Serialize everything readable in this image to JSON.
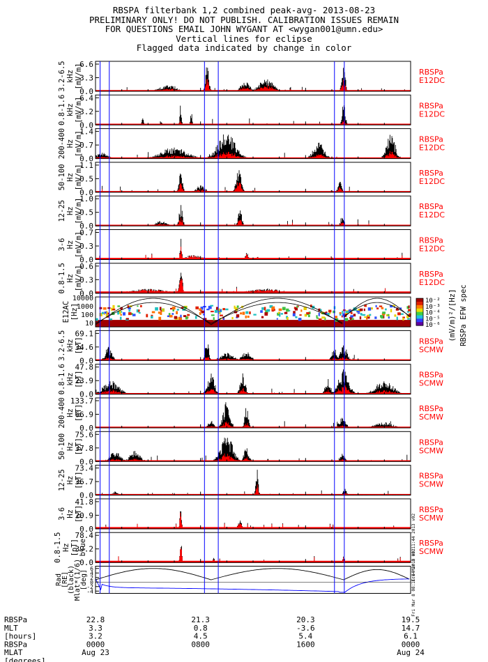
{
  "header": {
    "line1": "RBSPA filterbank 1,2 combined peak-avg- 2013-08-23",
    "line2": "PRELIMINARY ONLY! DO NOT PUBLISH. CALIBRATION ISSUES REMAIN",
    "line3": "FOR QUESTIONS EMAIL JOHN WYGANT AT <wygan001@umn.edu>",
    "line4": "Vertical lines for eclipse",
    "line5": "Flagged data indicated by change in color"
  },
  "colors": {
    "black": "#000000",
    "red": "#ff0000",
    "blue": "#0000ff"
  },
  "chart_data": {
    "type": "line",
    "x_range_hours": [
      0,
      24
    ],
    "eclipse_lines_hours": [
      0.35,
      1.05,
      8.3,
      9.35,
      18.2,
      18.95
    ],
    "panels": [
      {
        "name": "e12dc-3.2-6.5",
        "ylabel": [
          "3.2-6.5",
          "kHz",
          "[mV/m]"
        ],
        "ylim": [
          0,
          6.6
        ],
        "ticks": [
          "0.0",
          "3.3",
          "6.6"
        ],
        "tag": [
          "RBSPa",
          "E12DC"
        ],
        "bursts": [
          [
            8.5,
            6.6,
            0.2
          ],
          [
            11.4,
            2.5,
            0.5
          ],
          [
            13.0,
            3.2,
            0.8
          ],
          [
            18.9,
            6.6,
            0.2
          ],
          [
            5.5,
            1.5,
            1.0
          ]
        ],
        "red_scale": 0.55
      },
      {
        "name": "e12dc-0.8-1.6",
        "ylabel": [
          "0.8-1.6",
          "kHz",
          "[mV/m]"
        ],
        "ylim": [
          0,
          6.4
        ],
        "ticks": [
          "0.0",
          "3.2",
          "6.4"
        ],
        "tag": [
          "RBSPa",
          "E12DC"
        ],
        "bursts": [
          [
            6.5,
            5.5,
            0.1
          ],
          [
            7.3,
            3.5,
            0.1
          ],
          [
            18.9,
            5.0,
            0.2
          ],
          [
            3.6,
            1.8,
            0.1
          ],
          [
            5.0,
            1.5,
            0.1
          ]
        ],
        "red_scale": 0.3
      },
      {
        "name": "e12dc-200-400",
        "ylabel": [
          "200-400",
          "Hz",
          "[mV/m]"
        ],
        "ylim": [
          0,
          1.4
        ],
        "ticks": [
          "0.0",
          "0.7",
          "1.4"
        ],
        "tag": [
          "RBSPa",
          "E12DC"
        ],
        "bursts": [
          [
            10.0,
            1.4,
            1.0
          ],
          [
            17.0,
            0.9,
            0.6
          ],
          [
            22.5,
            1.3,
            0.5
          ],
          [
            0.5,
            0.3,
            0.8
          ],
          [
            6.0,
            0.6,
            1.5
          ]
        ],
        "red_scale": 0.35
      },
      {
        "name": "e12dc-50-100",
        "ylabel": [
          "50-100",
          "Hz",
          "[mV/m]"
        ],
        "ylim": [
          0,
          1.1
        ],
        "ticks": [
          "0.0",
          "0.5",
          "1.1"
        ],
        "tag": [
          "RBSPa",
          "E12DC"
        ],
        "bursts": [
          [
            6.5,
            0.9,
            0.2
          ],
          [
            10.9,
            1.0,
            0.3
          ],
          [
            8.0,
            0.3,
            0.5
          ],
          [
            18.6,
            0.6,
            0.2
          ]
        ],
        "red_scale": 0.55
      },
      {
        "name": "e12dc-12-25",
        "ylabel": [
          "12-25",
          "Hz",
          "[mV/m]"
        ],
        "ylim": [
          0,
          1.0
        ],
        "ticks": [
          "0.0",
          "0.5",
          "1.0"
        ],
        "tag": [
          "RBSPa",
          "E12DC"
        ],
        "bursts": [
          [
            6.5,
            0.8,
            0.2
          ],
          [
            11.0,
            0.9,
            0.2
          ],
          [
            18.8,
            0.4,
            0.2
          ],
          [
            5.0,
            0.2,
            0.6
          ]
        ],
        "red_scale": 0.55
      },
      {
        "name": "e12dc-3-6",
        "ylabel": [
          "3-6",
          "Hz",
          "[mV/m]"
        ],
        "ylim": [
          0,
          0.7
        ],
        "ticks": [
          "0.0",
          "0.3",
          "0.7"
        ],
        "tag": [
          "RBSPa",
          "E12DC"
        ],
        "bursts": [
          [
            6.5,
            0.6,
            0.1
          ],
          [
            11.5,
            0.2,
            0.2
          ],
          [
            7.5,
            0.12,
            1.0
          ]
        ],
        "red_scale": 1.0
      },
      {
        "name": "e12dc-0.8-1.5",
        "ylabel": [
          "0.8-1.5",
          "Hz",
          "[mV/m]"
        ],
        "ylim": [
          0,
          0.6
        ],
        "ticks": [
          "0.0",
          "0.3",
          "0.6"
        ],
        "tag": [
          "RBSPa",
          "E12DC"
        ],
        "bursts": [
          [
            6.5,
            0.5,
            0.2
          ],
          [
            4.0,
            0.1,
            2.0
          ],
          [
            13.0,
            0.1,
            2.0
          ]
        ],
        "red_scale": 1.0
      },
      {
        "name": "e12ac-spectrogram",
        "ylabel": [
          "E12AC",
          "[Hz]"
        ],
        "type": "spectrogram",
        "ticks": [
          "10",
          "100",
          "1000",
          "10000"
        ],
        "colorbar": {
          "ticks": [
            "10⁻²",
            "10⁻³",
            "10⁻⁴",
            "10⁻⁵",
            "10⁻⁶"
          ],
          "label": "(mV/m)²/[Hz]",
          "title": "RBSPa EFW spec"
        }
      },
      {
        "name": "scmw-3.2-6.5",
        "ylabel": [
          "3.2-6.5",
          "kHz",
          "[pT]"
        ],
        "ylim": [
          0,
          69.1
        ],
        "ticks": [
          "0.0",
          "34.6",
          "69.1"
        ],
        "tag": [
          "RBSPa",
          "SCMW"
        ],
        "bursts": [
          [
            8.5,
            69,
            0.2
          ],
          [
            1.0,
            35,
            0.4
          ],
          [
            10.0,
            20,
            0.8
          ],
          [
            18.9,
            40,
            0.4
          ],
          [
            11.5,
            25,
            0.5
          ],
          [
            18.2,
            30,
            0.3
          ]
        ],
        "red_scale": 0.3
      },
      {
        "name": "scmw-0.8-1.6",
        "ylabel": [
          "0.8-1.6",
          "kHz",
          "[pT]"
        ],
        "ylim": [
          0,
          47.8
        ],
        "ticks": [
          "0.0",
          "23.9",
          "47.8"
        ],
        "tag": [
          "RBSPa",
          "SCMW"
        ],
        "bursts": [
          [
            1.2,
            25,
            0.9
          ],
          [
            8.8,
            40,
            0.4
          ],
          [
            11.2,
            40,
            0.3
          ],
          [
            17.7,
            28,
            0.3
          ],
          [
            18.9,
            45,
            0.6
          ],
          [
            22.0,
            25,
            1.0
          ]
        ],
        "red_scale": 0.4
      },
      {
        "name": "scmw-200-400",
        "ylabel": [
          "200-400",
          "Hz",
          "[pT]"
        ],
        "ylim": [
          0,
          133.7
        ],
        "ticks": [
          "0.0",
          "66.9",
          "133.7"
        ],
        "tag": [
          "RBSPa",
          "SCMW"
        ],
        "bursts": [
          [
            10.0,
            133,
            0.4
          ],
          [
            11.5,
            120,
            0.2
          ],
          [
            18.8,
            50,
            0.4
          ],
          [
            22.0,
            30,
            1.0
          ],
          [
            8.8,
            40,
            0.3
          ]
        ],
        "red_scale": 0.3
      },
      {
        "name": "scmw-50-100",
        "ylabel": [
          "50-100",
          "Hz",
          "[pT]"
        ],
        "ylim": [
          0,
          75.6
        ],
        "ticks": [
          "0.0",
          "37.8",
          "75.6"
        ],
        "tag": [
          "RBSPa",
          "SCMW"
        ],
        "bursts": [
          [
            1.5,
            30,
            0.6
          ],
          [
            3.0,
            30,
            0.6
          ],
          [
            10.0,
            75,
            0.7
          ],
          [
            11.5,
            40,
            0.3
          ],
          [
            18.8,
            25,
            0.3
          ]
        ],
        "red_scale": 0.35
      },
      {
        "name": "scmw-12-25",
        "ylabel": [
          "12-25",
          "Hz",
          "[pT]"
        ],
        "ylim": [
          0,
          73.4
        ],
        "ticks": [
          "0.0",
          "36.7",
          "73.4"
        ],
        "tag": [
          "RBSPa",
          "SCMW"
        ],
        "bursts": [
          [
            12.3,
            73,
            0.15
          ],
          [
            1.5,
            10,
            0.3
          ],
          [
            19.0,
            20,
            0.2
          ]
        ],
        "red_scale": 0.5
      },
      {
        "name": "scmw-3-6",
        "ylabel": [
          "3-6",
          "Hz",
          "[pT]"
        ],
        "ylim": [
          0,
          41.8
        ],
        "ticks": [
          "0.0",
          "20.9",
          "41.8"
        ],
        "tag": [
          "RBSPa",
          "SCMW"
        ],
        "bursts": [
          [
            6.5,
            40,
            0.1
          ],
          [
            11.0,
            15,
            0.2
          ]
        ],
        "red_scale": 1.0
      },
      {
        "name": "scmw-0.8-1.5",
        "ylabel": [
          "0.8-1.5",
          "Hz",
          "[pT]",
          "blue"
        ],
        "ylim": [
          0,
          78.4
        ],
        "ticks": [
          "0.0",
          "39.2",
          "78.4"
        ],
        "tag": [
          "RBSPa",
          "SCMW"
        ],
        "bursts": [
          [
            6.5,
            70,
            0.1
          ],
          [
            9.0,
            15,
            0.1
          ],
          [
            18.9,
            20,
            0.1
          ]
        ],
        "red_scale": 1.0
      }
    ],
    "orbit_panel": {
      "ylabel": [
        "Rad",
        "[RE]",
        "(black)",
        "Mlat*(1/6)",
        "[deg]"
      ],
      "ticks": [
        "6",
        "4",
        "2",
        "0",
        "-2",
        "-4"
      ],
      "ylim": [
        -5,
        7
      ],
      "side_note": "Fri Mar 8 08:11:44 2013 v02"
    },
    "ephemeris": {
      "row_labels": [
        "RBSPa",
        "MLT",
        "[hours]",
        "RBSPa",
        "MLAT",
        "[degrees]"
      ],
      "columns": [
        {
          "hour": 0,
          "values": [
            "22.8",
            "3.3",
            "3.2",
            "0000",
            "Aug 23"
          ]
        },
        {
          "hour": 8,
          "values": [
            "21.3",
            "0.8",
            "4.5",
            "0800",
            ""
          ]
        },
        {
          "hour": 16,
          "values": [
            "20.3",
            "-3.6",
            "5.4",
            "1600",
            ""
          ]
        },
        {
          "hour": 24,
          "values": [
            "19.5",
            "14.7",
            "6.1",
            "0000",
            "Aug 24"
          ]
        }
      ]
    }
  }
}
